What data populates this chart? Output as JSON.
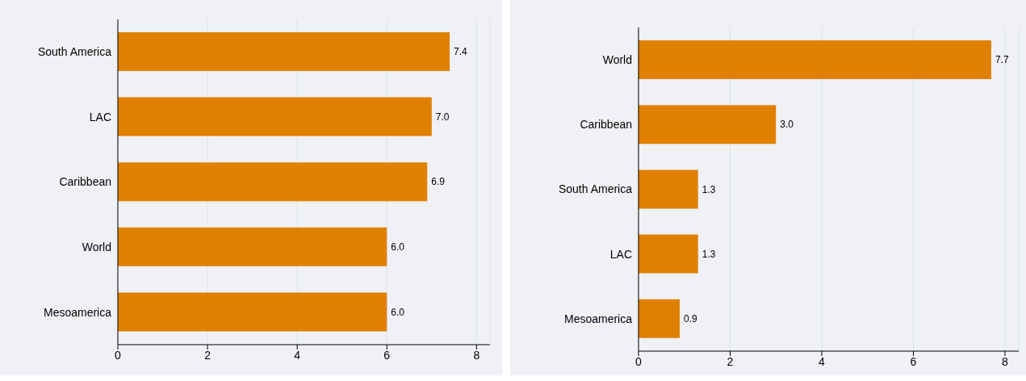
{
  "chart_data": [
    {
      "type": "bar",
      "orientation": "horizontal",
      "categories": [
        "South America",
        "LAC",
        "Caribbean",
        "World",
        "Mesoamerica"
      ],
      "values": [
        7.4,
        7.0,
        6.9,
        6.0,
        6.0
      ],
      "value_labels": [
        "7.4",
        "7.0",
        "6.9",
        "6.0",
        "6.0"
      ],
      "color": "#e08000",
      "xlim": [
        0,
        8.3
      ],
      "xticks": [
        0,
        2,
        4,
        6,
        8
      ],
      "grid": "x"
    },
    {
      "type": "bar",
      "orientation": "horizontal",
      "categories": [
        "World",
        "Caribbean",
        "South America",
        "LAC",
        "Mesoamerica"
      ],
      "values": [
        7.7,
        3.0,
        1.3,
        1.3,
        0.9
      ],
      "value_labels": [
        "7.7",
        "3.0",
        "1.3",
        "1.3",
        "0.9"
      ],
      "color": "#e08000",
      "xlim": [
        0,
        8.3
      ],
      "xticks": [
        0,
        2,
        4,
        6,
        8
      ],
      "grid": "x"
    }
  ]
}
